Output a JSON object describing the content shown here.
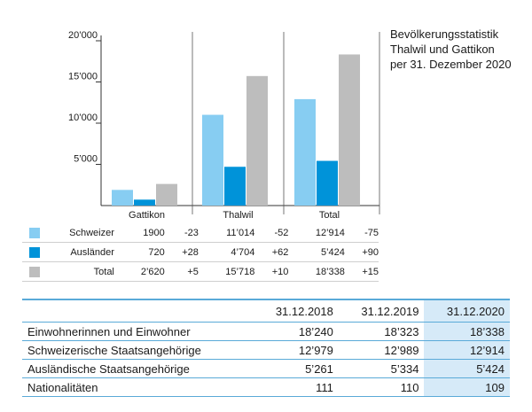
{
  "title": {
    "line1": "Bevölkerungsstatistik",
    "line2": "Thalwil und Gattikon",
    "line3": "per 31. Dezember 2020"
  },
  "chart_data": {
    "type": "bar",
    "title": "Bevölkerungsstatistik Thalwil und Gattikon per 31. Dezember 2020",
    "categories": [
      "Gattikon",
      "Thalwil",
      "Total"
    ],
    "series": [
      {
        "name": "Schweizer",
        "values": [
          1900,
          11014,
          12914
        ],
        "color": "#87cdf2"
      },
      {
        "name": "Ausländer",
        "values": [
          720,
          4704,
          5424
        ],
        "color": "#0093d9"
      },
      {
        "name": "Total",
        "values": [
          2620,
          15718,
          18338
        ],
        "color": "#bdbdbd"
      }
    ],
    "ylim": [
      0,
      20000
    ],
    "yticks": [
      "5’000",
      "10’000",
      "15’000",
      "20’000"
    ],
    "ytick_values": [
      5000,
      10000,
      15000,
      20000
    ],
    "grid": false,
    "legend": [
      {
        "label": "Schweizer",
        "color": "#87cdf2",
        "cells": [
          "1900",
          "-23",
          "11’014",
          "-52",
          "12’914",
          "-75"
        ]
      },
      {
        "label": "Ausländer",
        "color": "#0093d9",
        "cells": [
          "720",
          "+28",
          "4’704",
          "+62",
          "5’424",
          "+90"
        ]
      },
      {
        "label": "Total",
        "color": "#bdbdbd",
        "cells": [
          "2’620",
          "+5",
          "15’718",
          "+10",
          "18’338",
          "+15"
        ]
      }
    ]
  },
  "stats": {
    "headers": [
      "",
      "31.12.2018",
      "31.12.2019",
      "31.12.2020"
    ],
    "rows": [
      [
        "Einwohnerinnen und Einwohner",
        "18’240",
        "18’323",
        "18’338"
      ],
      [
        "Schweizerische Staatsangehörige",
        "12’979",
        "12’989",
        "12’914"
      ],
      [
        "Ausländische Staatsangehörige",
        "5’261",
        "5’334",
        "5’424"
      ],
      [
        "Nationalitäten",
        "111",
        "110",
        "109"
      ]
    ]
  }
}
